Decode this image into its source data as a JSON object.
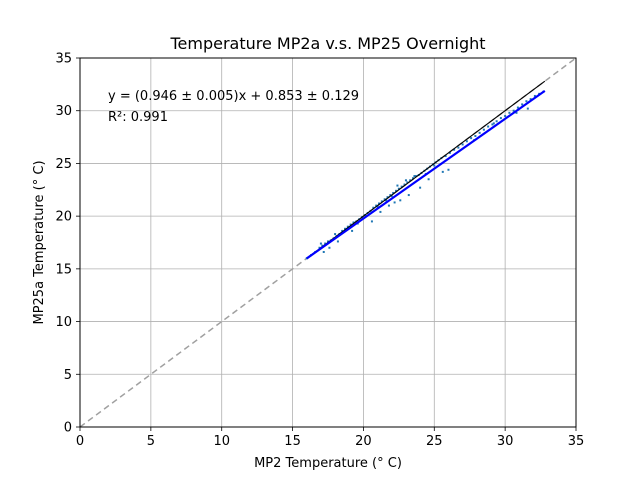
{
  "chart_data": {
    "type": "scatter",
    "title": "Temperature MP2a v.s. MP25 Overnight",
    "xlabel": "MP2 Temperature (° C)",
    "ylabel": "MP25a Temperature (° C)",
    "xlim": [
      0,
      35
    ],
    "ylim": [
      0,
      35
    ],
    "xticks": [
      "0",
      "5",
      "10",
      "15",
      "20",
      "25",
      "30",
      "35"
    ],
    "yticks": [
      "0",
      "5",
      "10",
      "15",
      "20",
      "25",
      "30",
      "35"
    ],
    "grid": true,
    "annotations": [
      "y = (0.946 ± 0.005)x + 0.853 ± 0.129",
      "R²: 0.991"
    ],
    "fit": {
      "slope": 0.946,
      "intercept": 0.853,
      "x_range": [
        16.0,
        32.8
      ],
      "color": "#0000ff"
    },
    "identity_line": {
      "x_range": [
        0,
        35
      ],
      "color": "#a0a0a0",
      "style": "dashed"
    },
    "reference_line": {
      "x_range": [
        16.0,
        32.8
      ],
      "color": "#000000"
    },
    "series": [
      {
        "color": "#1f77b4",
        "x": [
          16.0,
          16.3,
          16.6,
          16.9,
          17.1,
          17.3,
          17.5,
          17.7,
          17.9,
          18.1,
          18.3,
          18.5,
          18.7,
          18.9,
          19.1,
          19.3,
          19.5,
          19.7,
          19.9,
          20.1,
          20.3,
          20.5,
          20.7,
          20.9,
          21.1,
          21.3,
          21.5,
          21.7,
          21.9,
          22.1,
          22.3,
          22.5,
          22.7,
          22.9,
          23.1,
          23.3,
          23.5,
          23.7,
          23.9,
          24.1,
          24.3,
          24.5,
          24.7,
          24.9,
          25.1,
          25.3,
          25.5,
          25.8,
          26.1,
          26.4,
          26.7,
          27.0,
          27.3,
          27.6,
          27.9,
          28.2,
          28.5,
          28.8,
          29.1,
          29.4,
          29.7,
          30.0,
          30.3,
          30.6,
          30.9,
          31.2,
          31.5,
          31.8,
          32.1,
          32.4,
          32.7,
          17.2,
          17.6,
          18.2,
          19.2,
          20.6,
          21.2,
          21.8,
          22.2,
          22.6,
          23.2,
          24.0,
          24.6,
          25.6,
          26.0,
          27.8,
          29.2,
          30.8,
          31.6,
          17.0,
          18.0,
          19.6,
          20.2,
          21.0,
          21.6,
          22.0,
          22.4,
          23.0,
          23.6,
          24.4,
          25.0
        ],
        "y": [
          16.0,
          16.3,
          16.6,
          17.0,
          17.2,
          17.4,
          17.6,
          17.7,
          17.9,
          18.1,
          18.3,
          18.6,
          18.8,
          19.0,
          19.2,
          19.4,
          19.5,
          19.7,
          19.9,
          20.1,
          20.3,
          20.5,
          20.8,
          21.0,
          21.2,
          21.4,
          21.6,
          21.8,
          22.0,
          22.2,
          22.4,
          22.6,
          22.8,
          23.0,
          23.2,
          23.4,
          23.6,
          23.8,
          23.9,
          24.1,
          24.3,
          24.5,
          24.7,
          24.9,
          25.1,
          25.3,
          25.5,
          25.7,
          26.0,
          26.3,
          26.5,
          26.8,
          27.1,
          27.4,
          27.6,
          27.9,
          28.2,
          28.5,
          28.7,
          29.0,
          29.3,
          29.5,
          29.8,
          30.0,
          30.3,
          30.6,
          30.9,
          31.1,
          31.4,
          31.6,
          31.8,
          16.6,
          17.0,
          17.6,
          18.6,
          19.5,
          20.4,
          21.0,
          21.3,
          21.5,
          22.0,
          22.7,
          23.5,
          24.2,
          24.4,
          27.2,
          28.8,
          29.8,
          30.2,
          17.4,
          18.3,
          19.3,
          20.0,
          20.9,
          21.5,
          21.9,
          22.9,
          23.4,
          23.8,
          24.0,
          24.8
        ]
      }
    ]
  }
}
